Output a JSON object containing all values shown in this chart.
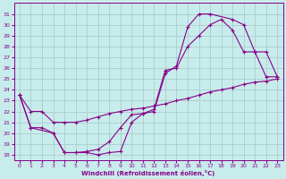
{
  "xlabel": "Windchill (Refroidissement éolien,°C)",
  "bg_color": "#c8ecec",
  "line_color": "#880088",
  "grid_color": "#aacccc",
  "xlim": [
    -0.5,
    23.5
  ],
  "ylim": [
    17.5,
    32.0
  ],
  "xticks": [
    0,
    1,
    2,
    3,
    4,
    5,
    6,
    7,
    8,
    9,
    10,
    11,
    12,
    13,
    14,
    15,
    16,
    17,
    18,
    19,
    20,
    21,
    22,
    23
  ],
  "yticks": [
    18,
    19,
    20,
    21,
    22,
    23,
    24,
    25,
    26,
    27,
    28,
    29,
    30,
    31
  ],
  "line1_x": [
    0,
    1,
    2,
    3,
    4,
    5,
    6,
    7,
    8,
    9,
    10,
    11,
    12,
    13,
    14,
    15,
    16,
    17,
    18,
    19,
    20,
    21,
    22,
    23
  ],
  "line1_y": [
    23.5,
    22.0,
    22.0,
    21.0,
    21.0,
    21.0,
    21.2,
    21.5,
    21.8,
    22.0,
    22.2,
    22.3,
    22.5,
    22.7,
    23.0,
    23.2,
    23.5,
    23.8,
    24.0,
    24.2,
    24.5,
    24.7,
    24.8,
    25.0
  ],
  "line2_x": [
    0,
    1,
    2,
    3,
    4,
    5,
    6,
    7,
    8,
    9,
    10,
    11,
    12,
    13,
    14,
    15,
    16,
    17,
    18,
    19,
    20,
    21,
    22,
    23
  ],
  "line2_y": [
    23.5,
    20.5,
    20.5,
    20.0,
    18.2,
    18.2,
    18.3,
    18.5,
    19.2,
    20.5,
    21.7,
    21.8,
    22.2,
    25.8,
    26.0,
    28.0,
    29.0,
    30.0,
    30.5,
    29.5,
    27.5,
    27.5,
    25.2,
    25.2
  ],
  "line3_x": [
    0,
    1,
    3,
    4,
    5,
    6,
    7,
    8,
    9,
    10,
    11,
    12,
    13,
    14,
    15,
    16,
    17,
    19,
    20,
    21,
    22,
    23
  ],
  "line3_y": [
    23.5,
    20.5,
    20.0,
    18.2,
    18.2,
    18.2,
    18.0,
    18.2,
    18.3,
    21.0,
    21.8,
    22.0,
    25.5,
    26.2,
    29.8,
    31.0,
    31.0,
    30.5,
    30.0,
    27.5,
    27.5,
    25.2
  ]
}
